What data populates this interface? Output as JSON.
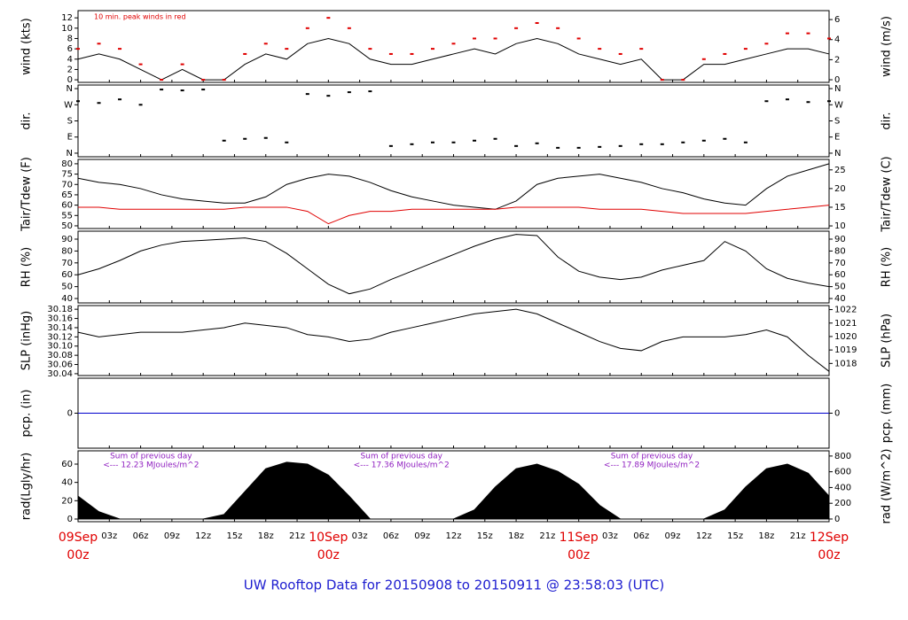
{
  "title": "UW Rooftop Data for 20150908  to  20150911 @ 23:58:03  (UTC)",
  "time_axis": {
    "xlim": [
      0,
      72
    ],
    "xticks": [
      {
        "value": 0,
        "label": "00z"
      },
      {
        "value": 3,
        "label": "03z"
      },
      {
        "value": 6,
        "label": "06z"
      },
      {
        "value": 9,
        "label": "09z"
      },
      {
        "value": 12,
        "label": "12z"
      },
      {
        "value": 15,
        "label": "15z"
      },
      {
        "value": 18,
        "label": "18z"
      },
      {
        "value": 21,
        "label": "21z"
      },
      {
        "value": 24,
        "label": "00z"
      },
      {
        "value": 27,
        "label": "03z"
      },
      {
        "value": 30,
        "label": "06z"
      },
      {
        "value": 33,
        "label": "09z"
      },
      {
        "value": 36,
        "label": "12z"
      },
      {
        "value": 39,
        "label": "15z"
      },
      {
        "value": 42,
        "label": "18z"
      },
      {
        "value": 45,
        "label": "21z"
      },
      {
        "value": 48,
        "label": "00z"
      },
      {
        "value": 51,
        "label": "03z"
      },
      {
        "value": 54,
        "label": "06z"
      },
      {
        "value": 57,
        "label": "09z"
      },
      {
        "value": 60,
        "label": "12z"
      },
      {
        "value": 63,
        "label": "15z"
      },
      {
        "value": 66,
        "label": "18z"
      },
      {
        "value": 69,
        "label": "21z"
      },
      {
        "value": 72,
        "label": "00z"
      }
    ],
    "day_labels": [
      {
        "value": 0,
        "label": "09Sep"
      },
      {
        "value": 24,
        "label": "10Sep"
      },
      {
        "value": 48,
        "label": "11Sep"
      },
      {
        "value": 72,
        "label": "12Sep"
      }
    ]
  },
  "x": [
    0,
    2,
    4,
    6,
    8,
    10,
    12,
    14,
    16,
    18,
    20,
    22,
    24,
    26,
    28,
    30,
    32,
    34,
    36,
    38,
    40,
    42,
    44,
    46,
    48,
    50,
    52,
    54,
    56,
    58,
    60,
    62,
    64,
    66,
    68,
    70,
    72
  ],
  "chart_data": [
    {
      "type": "line",
      "ylabel": "wind (kts)",
      "y2label": "wind (m/s)",
      "annotation": "10 min. peak winds in red",
      "ylim": [
        -0.5,
        13.4
      ],
      "yticks": [
        0,
        2,
        4,
        6,
        8,
        10,
        12
      ],
      "y2lim": [
        -0.26,
        6.89
      ],
      "y2ticks": [
        0,
        2,
        4,
        6
      ],
      "series": [
        {
          "color": "#000000",
          "style": "line",
          "values": [
            4,
            5,
            4,
            2,
            0,
            2,
            0,
            0,
            3,
            5,
            4,
            7,
            8,
            7,
            4,
            3,
            3,
            4,
            5,
            6,
            5,
            7,
            8,
            7,
            5,
            4,
            3,
            4,
            0,
            0,
            3,
            3,
            4,
            5,
            6,
            6,
            5
          ]
        },
        {
          "color": "#e00000",
          "style": "points",
          "values": [
            6,
            7,
            6,
            3,
            0,
            3,
            0,
            0,
            5,
            7,
            6,
            10,
            12,
            10,
            6,
            5,
            5,
            6,
            7,
            8,
            8,
            10,
            11,
            10,
            8,
            6,
            5,
            6,
            0,
            0,
            4,
            5,
            6,
            7,
            9,
            9,
            8
          ]
        }
      ]
    },
    {
      "type": "scatter",
      "ylabel": "dir.",
      "y2label": "dir.",
      "ylim": [
        -20,
        380
      ],
      "yticks": [
        {
          "value": 0,
          "label": "N"
        },
        {
          "value": 90,
          "label": "E"
        },
        {
          "value": 180,
          "label": "S"
        },
        {
          "value": 270,
          "label": "W"
        },
        {
          "value": 360,
          "label": "N"
        }
      ],
      "y2lim": [
        -20,
        380
      ],
      "y2ticks": [
        {
          "value": 0,
          "label": "N"
        },
        {
          "value": 90,
          "label": "E"
        },
        {
          "value": 180,
          "label": "S"
        },
        {
          "value": 270,
          "label": "W"
        },
        {
          "value": 360,
          "label": "N"
        }
      ],
      "series": [
        {
          "color": "#000000",
          "style": "points",
          "values": [
            290,
            280,
            300,
            270,
            355,
            350,
            355,
            70,
            80,
            85,
            60,
            330,
            320,
            340,
            345,
            40,
            50,
            60,
            60,
            70,
            80,
            40,
            55,
            30,
            30,
            35,
            40,
            50,
            50,
            60,
            70,
            80,
            60,
            290,
            300,
            285,
            290
          ]
        }
      ]
    },
    {
      "type": "line",
      "ylabel": "Tair/Tdew (F)",
      "y2label": "Tair/Tdew (C)",
      "ylim": [
        48.7,
        82.1
      ],
      "yticks": [
        50,
        55,
        60,
        65,
        70,
        75,
        80
      ],
      "y2lim": [
        9.3,
        27.8
      ],
      "y2ticks": [
        10,
        15,
        20,
        25
      ],
      "series": [
        {
          "color": "#000000",
          "style": "line",
          "values": [
            73,
            71,
            70,
            68,
            65,
            63,
            62,
            61,
            61,
            64,
            70,
            73,
            75,
            74,
            71,
            67,
            64,
            62,
            60,
            59,
            58,
            62,
            70,
            73,
            74,
            75,
            73,
            71,
            68,
            66,
            63,
            61,
            60,
            68,
            74,
            77,
            80
          ]
        },
        {
          "color": "#e00000",
          "style": "line",
          "values": [
            59,
            59,
            58,
            58,
            58,
            58,
            58,
            58,
            59,
            59,
            59,
            57,
            51,
            55,
            57,
            57,
            58,
            58,
            58,
            58,
            58,
            59,
            59,
            59,
            59,
            58,
            58,
            58,
            57,
            56,
            56,
            56,
            56,
            57,
            58,
            59,
            60
          ]
        }
      ]
    },
    {
      "type": "line",
      "ylabel": "RH (%)",
      "y2label": "RH (%)",
      "ylim": [
        36.3,
        96.7
      ],
      "yticks": [
        40,
        50,
        60,
        70,
        80,
        90
      ],
      "y2lim": [
        36.3,
        96.7
      ],
      "y2ticks": [
        40,
        50,
        60,
        70,
        80,
        90
      ],
      "series": [
        {
          "color": "#000000",
          "style": "line",
          "values": [
            60,
            65,
            72,
            80,
            85,
            88,
            89,
            90,
            91,
            88,
            78,
            65,
            52,
            44,
            48,
            56,
            63,
            70,
            77,
            84,
            90,
            94,
            93,
            75,
            63,
            58,
            56,
            58,
            64,
            68,
            72,
            88,
            80,
            65,
            57,
            53,
            50
          ]
        }
      ]
    },
    {
      "type": "line",
      "ylabel": "SLP (inHg)",
      "y2label": "SLP (hPa)",
      "ylim": [
        30.036,
        30.188
      ],
      "yticks": [
        30.04,
        30.06,
        30.08,
        {
          "value": 30.1,
          "label": "30.10"
        },
        30.12,
        30.14,
        30.16,
        30.18
      ],
      "y2lim": [
        1017.1,
        1022.3
      ],
      "y2ticks": [
        1018,
        1019,
        1020,
        1021,
        1022
      ],
      "series": [
        {
          "color": "#000000",
          "style": "line",
          "values": [
            30.13,
            30.12,
            30.125,
            30.13,
            30.13,
            30.13,
            30.135,
            30.14,
            30.15,
            30.145,
            30.14,
            30.125,
            30.12,
            30.11,
            30.115,
            30.13,
            30.14,
            30.15,
            30.16,
            30.17,
            30.175,
            30.18,
            30.17,
            30.15,
            30.13,
            30.11,
            30.095,
            30.09,
            30.11,
            30.12,
            30.12,
            30.12,
            30.125,
            30.135,
            30.12,
            30.08,
            30.045
          ]
        }
      ]
    },
    {
      "type": "line",
      "ylabel": "pcp. (in)",
      "y2label": "pcp. (mm)",
      "ylim": [
        -1,
        1
      ],
      "yticks": [
        0
      ],
      "y2lim": [
        -1,
        1
      ],
      "y2ticks": [
        0
      ],
      "series": [
        {
          "color": "#0000cc",
          "style": "line",
          "values": [
            0,
            0,
            0,
            0,
            0,
            0,
            0,
            0,
            0,
            0,
            0,
            0,
            0,
            0,
            0,
            0,
            0,
            0,
            0,
            0,
            0,
            0,
            0,
            0,
            0,
            0,
            0,
            0,
            0,
            0,
            0,
            0,
            0,
            0,
            0,
            0,
            0
          ]
        }
      ]
    },
    {
      "type": "area",
      "ylabel": "rad(Lgly/hr)",
      "y2label": "rad (W/m^2)",
      "ylim": [
        -2.9,
        74.5
      ],
      "yticks": [
        0,
        20,
        40,
        60
      ],
      "y2lim": [
        -34,
        866
      ],
      "y2ticks": [
        0,
        200,
        400,
        600,
        800
      ],
      "annotations": [
        [
          "Sum of previous day",
          "<--- 12.23 MJoules/m^2"
        ],
        [
          "Sum of previous day",
          "<--- 17.36 MJoules/m^2"
        ],
        [
          "Sum of previous day",
          "<--- 17.89 MJoules/m^2"
        ]
      ],
      "series": [
        {
          "color": "#000000",
          "style": "area",
          "values": [
            25,
            8,
            0,
            0,
            0,
            0,
            0,
            5,
            30,
            55,
            62,
            60,
            48,
            25,
            0,
            0,
            0,
            0,
            0,
            10,
            35,
            55,
            60,
            52,
            38,
            15,
            0,
            0,
            0,
            0,
            0,
            10,
            35,
            55,
            60,
            50,
            25
          ]
        }
      ]
    }
  ]
}
